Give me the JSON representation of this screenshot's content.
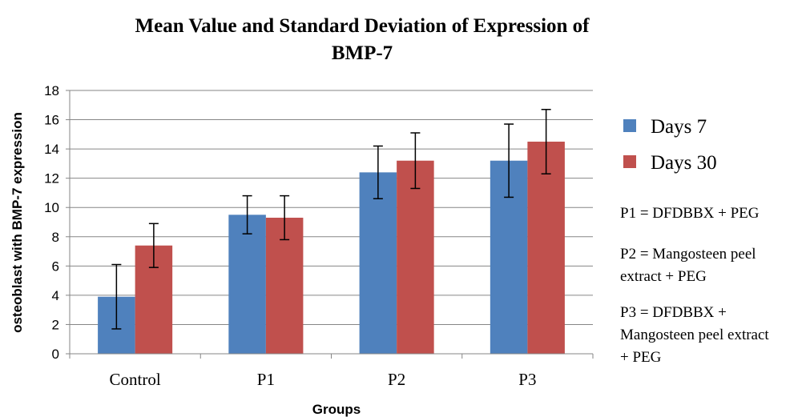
{
  "chart_data": {
    "type": "bar",
    "title_lines": [
      "Mean Value and Standard  Deviation of Expression of",
      "BMP-7"
    ],
    "xlabel": "Groups",
    "ylabel": "osteoblast with BMP-7 expression",
    "categories": [
      "Control",
      "P1",
      "P2",
      "P3"
    ],
    "ylim": [
      0,
      18
    ],
    "yticks": [
      0,
      2,
      4,
      6,
      8,
      10,
      12,
      14,
      16,
      18
    ],
    "grid": true,
    "legend_position": "right",
    "series": [
      {
        "name": "Days 7",
        "color": "#4F81BD",
        "values": [
          3.9,
          9.5,
          12.4,
          13.2
        ],
        "errors": [
          2.2,
          1.3,
          1.8,
          2.5
        ]
      },
      {
        "name": "Days 30",
        "color": "#C0504D",
        "values": [
          7.4,
          9.3,
          13.2,
          14.5
        ],
        "errors": [
          1.5,
          1.5,
          1.9,
          2.2
        ]
      }
    ],
    "annotations": [
      [
        "P1 = DFDBBX + PEG"
      ],
      [
        "P2 = Mangosteen peel",
        "extract + PEG"
      ],
      [
        "P3 = DFDBBX +",
        "Mangosteen peel extract",
        "+ PEG"
      ]
    ]
  }
}
